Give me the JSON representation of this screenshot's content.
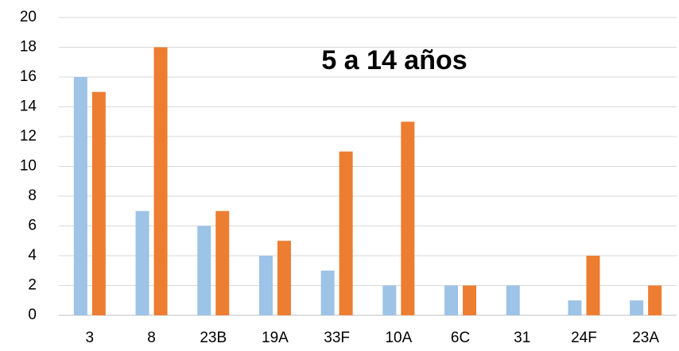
{
  "chart_data": {
    "type": "bar",
    "title": "5 a 14 años",
    "categories": [
      "3",
      "8",
      "23B",
      "19A",
      "33F",
      "10A",
      "6C",
      "31",
      "24F",
      "23A"
    ],
    "series": [
      {
        "color": "#9dc3e6",
        "values": [
          16,
          7,
          6,
          4,
          3,
          2,
          2,
          2,
          1,
          1
        ]
      },
      {
        "color": "#ed7d31",
        "values": [
          15,
          18,
          7,
          5,
          11,
          13,
          2,
          0,
          4,
          2
        ]
      }
    ],
    "ylim": [
      0,
      20
    ],
    "yticks": [
      0,
      2,
      4,
      6,
      8,
      10,
      12,
      14,
      16,
      18,
      20
    ],
    "grid": true
  }
}
